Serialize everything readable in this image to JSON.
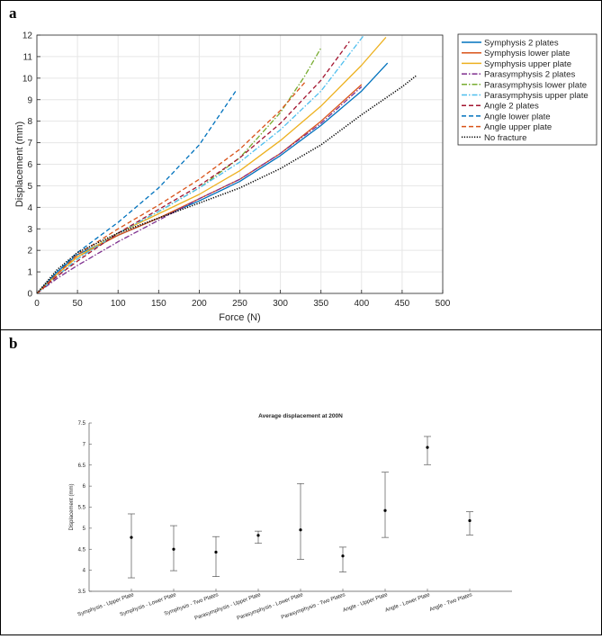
{
  "panels": {
    "a_label": "a",
    "b_label": "b"
  },
  "colors": {
    "symphysis_2": "#0072bd",
    "symphysis_lower": "#d95319",
    "symphysis_upper": "#edb120",
    "parasymphysis_2": "#7e2f8e",
    "parasymphysis_lower": "#77ac30",
    "parasymphysis_upper": "#4dbeee",
    "angle_2": "#a2142f",
    "angle_lower": "#0072bd",
    "angle_upper": "#d95319",
    "no_fracture": "#000000"
  },
  "chart_data": [
    {
      "type": "line",
      "xlabel": "Force (N)",
      "ylabel": "Displacement (mm)",
      "xlim": [
        0,
        500
      ],
      "ylim": [
        0,
        12
      ],
      "xticks": [
        "0",
        "50",
        "100",
        "150",
        "200",
        "250",
        "300",
        "350",
        "400",
        "450",
        "500"
      ],
      "yticks": [
        "0",
        "1",
        "2",
        "3",
        "4",
        "5",
        "6",
        "7",
        "8",
        "9",
        "10",
        "11",
        "12"
      ],
      "legend_position": "top-right",
      "series": [
        {
          "name": "Symphysis 2 plates",
          "style": "solid",
          "color_key": "symphysis_2",
          "x": [
            0,
            25,
            50,
            100,
            150,
            200,
            250,
            300,
            350,
            400,
            432
          ],
          "y": [
            0,
            1.0,
            1.8,
            2.7,
            3.5,
            4.3,
            5.2,
            6.4,
            7.8,
            9.4,
            10.7
          ]
        },
        {
          "name": "Symphysis lower plate",
          "style": "solid",
          "color_key": "symphysis_lower",
          "x": [
            0,
            25,
            50,
            100,
            150,
            200,
            250,
            300,
            350,
            400
          ],
          "y": [
            0,
            0.9,
            1.7,
            2.7,
            3.5,
            4.4,
            5.3,
            6.5,
            8.0,
            9.7
          ]
        },
        {
          "name": "Symphysis upper plate",
          "style": "solid",
          "color_key": "symphysis_upper",
          "x": [
            0,
            25,
            50,
            100,
            150,
            200,
            250,
            300,
            350,
            400,
            430
          ],
          "y": [
            0,
            0.9,
            1.7,
            2.8,
            3.7,
            4.6,
            5.7,
            7.1,
            8.7,
            10.6,
            11.9
          ]
        },
        {
          "name": "Parasymphysis 2 plates",
          "style": "dashdot",
          "color_key": "parasymphysis_2",
          "x": [
            0,
            25,
            50,
            100,
            150,
            200,
            250,
            300,
            350,
            400
          ],
          "y": [
            0,
            0.7,
            1.3,
            2.4,
            3.4,
            4.4,
            5.3,
            6.5,
            7.9,
            9.6
          ]
        },
        {
          "name": "Parasymphysis lower plate",
          "style": "dashdot",
          "color_key": "parasymphysis_lower",
          "x": [
            0,
            25,
            50,
            100,
            150,
            200,
            250,
            300,
            330,
            350
          ],
          "y": [
            0,
            0.8,
            1.6,
            2.8,
            3.8,
            4.9,
            6.3,
            8.4,
            10.1,
            11.4
          ]
        },
        {
          "name": "Parasymphysis upper plate",
          "style": "dashdot",
          "color_key": "parasymphysis_upper",
          "x": [
            0,
            25,
            50,
            100,
            150,
            200,
            250,
            300,
            350,
            403
          ],
          "y": [
            0,
            0.8,
            1.6,
            2.8,
            3.8,
            4.9,
            6.1,
            7.6,
            9.4,
            12.0
          ]
        },
        {
          "name": "Angle 2 plates",
          "style": "dashed",
          "color_key": "angle_2",
          "x": [
            0,
            25,
            50,
            100,
            150,
            200,
            250,
            300,
            350,
            385
          ],
          "y": [
            0,
            0.8,
            1.5,
            2.8,
            3.9,
            5.0,
            6.3,
            7.9,
            9.9,
            11.7
          ]
        },
        {
          "name": "Angle lower plate",
          "style": "dashed",
          "color_key": "angle_lower",
          "x": [
            0,
            25,
            50,
            100,
            150,
            200,
            245
          ],
          "y": [
            0,
            1.0,
            1.9,
            3.3,
            4.9,
            6.9,
            9.4
          ]
        },
        {
          "name": "Angle upper plate",
          "style": "dashed",
          "color_key": "angle_upper",
          "x": [
            0,
            25,
            50,
            100,
            150,
            200,
            250,
            300,
            330
          ],
          "y": [
            0,
            0.9,
            1.8,
            3.0,
            4.1,
            5.3,
            6.7,
            8.5,
            9.8
          ]
        },
        {
          "name": "No fracture",
          "style": "dotted",
          "color_key": "no_fracture",
          "x": [
            0,
            25,
            50,
            100,
            150,
            200,
            250,
            300,
            350,
            400,
            450,
            467
          ],
          "y": [
            0,
            1.1,
            1.9,
            2.8,
            3.5,
            4.2,
            4.9,
            5.8,
            6.9,
            8.3,
            9.6,
            10.1
          ]
        }
      ]
    },
    {
      "type": "errorbar",
      "title": "Average displacement at 200N",
      "xlabel": "",
      "ylabel": "Displacement (mm)",
      "ylim": [
        3.5,
        7.5
      ],
      "yticks": [
        "3.5",
        "4",
        "4.5",
        "5",
        "5.5",
        "6",
        "6.5",
        "7",
        "7.5"
      ],
      "categories": [
        "Symphysis - Upper Plate",
        "Symphysis - Lower Plate",
        "Symphysis - Two Plates",
        "Parasymphysis - Upper Plate",
        "Parasymphysis - Lower Plate",
        "Parasymphysis - Two Plates",
        "Angle - Upper Plate",
        "Angle - Lower Plate",
        "Angle - Two Plates"
      ],
      "means": [
        4.78,
        4.5,
        4.43,
        4.83,
        4.96,
        4.34,
        5.42,
        6.92,
        5.18
      ],
      "lower": [
        3.82,
        3.99,
        3.85,
        4.64,
        4.26,
        3.96,
        4.78,
        6.51,
        4.84
      ],
      "upper": [
        5.34,
        5.06,
        4.8,
        4.93,
        6.06,
        4.55,
        6.33,
        7.18,
        5.39
      ]
    }
  ]
}
